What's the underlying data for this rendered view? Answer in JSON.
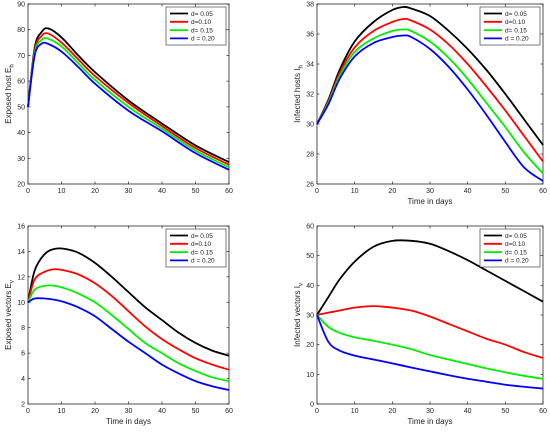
{
  "chart_data": [
    {
      "type": "line",
      "xlabel": "",
      "ylabel": "Exposed host E",
      "ylabel_sub": "h",
      "xlim": [
        0,
        60
      ],
      "ylim": [
        20,
        90
      ],
      "xticks": [
        0,
        10,
        20,
        30,
        40,
        50,
        60
      ],
      "yticks": [
        20,
        30,
        40,
        50,
        60,
        70,
        80,
        90
      ],
      "grid": false,
      "legend_position": "top-right",
      "x": [
        0,
        2,
        4,
        6,
        10,
        15,
        20,
        30,
        40,
        50,
        60
      ],
      "series": [
        {
          "name": "d= 0.05",
          "color": "#000000",
          "values": [
            50,
            73,
            79,
            80.5,
            77,
            70,
            63.5,
            52.5,
            43.5,
            35,
            28.5
          ]
        },
        {
          "name": "d=0.10",
          "color": "#ff0000",
          "values": [
            50,
            72,
            77.5,
            78.5,
            75,
            68.5,
            62,
            51.5,
            42.5,
            34,
            27.5
          ]
        },
        {
          "name": "d= 0.15",
          "color": "#00ee00",
          "values": [
            50,
            71,
            76,
            76.5,
            73.5,
            67,
            60.5,
            50,
            41.5,
            33,
            26.5
          ]
        },
        {
          "name": "d = 0.20",
          "color": "#0000ff",
          "values": [
            50,
            70,
            74.5,
            74.5,
            71.5,
            65.5,
            59,
            48.5,
            40.5,
            32,
            25.5
          ]
        }
      ]
    },
    {
      "type": "line",
      "xlabel": "Time in days",
      "ylabel": "Infected  hosts  I",
      "ylabel_sub": "h",
      "xlim": [
        0,
        60
      ],
      "ylim": [
        26,
        38
      ],
      "xticks": [
        0,
        10,
        20,
        30,
        40,
        50,
        60
      ],
      "yticks": [
        26,
        28,
        30,
        32,
        34,
        36,
        38
      ],
      "grid": false,
      "legend_position": "top-right",
      "x": [
        0,
        3,
        6,
        10,
        15,
        20,
        23,
        25,
        30,
        35,
        40,
        45,
        50,
        55,
        60
      ],
      "series": [
        {
          "name": "d= 0.05",
          "color": "#000000",
          "values": [
            30,
            31.6,
            33.6,
            35.5,
            36.8,
            37.6,
            37.8,
            37.7,
            37.2,
            36.2,
            35,
            33.6,
            32,
            30.3,
            28.6
          ]
        },
        {
          "name": "d=0.10",
          "color": "#ff0000",
          "values": [
            30,
            31.5,
            33.4,
            35.1,
            36.2,
            36.8,
            37,
            36.9,
            36.3,
            35.3,
            34,
            32.5,
            30.9,
            29.2,
            27.5
          ]
        },
        {
          "name": "d= 0.15",
          "color": "#00ee00",
          "values": [
            30,
            31.4,
            33.2,
            34.8,
            35.7,
            36.2,
            36.3,
            36.2,
            35.5,
            34.4,
            33,
            31.4,
            29.8,
            28.1,
            26.7
          ]
        },
        {
          "name": "d = 0.20",
          "color": "#0000ff",
          "values": [
            30,
            31.3,
            33,
            34.5,
            35.4,
            35.8,
            35.9,
            35.8,
            35,
            33.8,
            32.3,
            30.6,
            28.8,
            27.1,
            26.2
          ]
        }
      ]
    },
    {
      "type": "line",
      "xlabel": "Time in days",
      "ylabel": "Exposed vectors E",
      "ylabel_sub": "v",
      "xlim": [
        0,
        60
      ],
      "ylim": [
        2,
        16
      ],
      "xticks": [
        0,
        10,
        20,
        30,
        40,
        50,
        60
      ],
      "yticks": [
        2,
        4,
        6,
        8,
        10,
        12,
        14,
        16
      ],
      "grid": false,
      "legend_position": "top-right",
      "x": [
        0,
        2,
        5,
        8,
        11,
        15,
        20,
        25,
        30,
        35,
        40,
        45,
        50,
        55,
        60
      ],
      "series": [
        {
          "name": "d= 0.05",
          "color": "#000000",
          "values": [
            10,
            12.5,
            13.8,
            14.2,
            14.2,
            13.9,
            13.1,
            12,
            10.8,
            9.6,
            8.6,
            7.6,
            6.8,
            6.2,
            5.8
          ]
        },
        {
          "name": "d=0.10",
          "color": "#ff0000",
          "values": [
            10,
            11.8,
            12.4,
            12.6,
            12.5,
            12.2,
            11.5,
            10.5,
            9.3,
            8.1,
            7.1,
            6.3,
            5.6,
            5.1,
            4.7
          ]
        },
        {
          "name": "d= 0.15",
          "color": "#00ee00",
          "values": [
            10,
            11,
            11.3,
            11.3,
            11.1,
            10.7,
            10,
            9,
            7.9,
            6.8,
            6,
            5.2,
            4.6,
            4.1,
            3.8
          ]
        },
        {
          "name": "d = 0.20",
          "color": "#0000ff",
          "values": [
            10,
            10.3,
            10.3,
            10.2,
            10,
            9.6,
            8.9,
            7.9,
            6.9,
            6,
            5.1,
            4.4,
            3.8,
            3.4,
            3.1
          ]
        }
      ]
    },
    {
      "type": "line",
      "xlabel": "Time in days",
      "ylabel": "Infected vectors I",
      "ylabel_sub": "v",
      "xlim": [
        0,
        60
      ],
      "ylim": [
        0,
        60
      ],
      "xticks": [
        0,
        10,
        20,
        30,
        40,
        50,
        60
      ],
      "yticks": [
        0,
        10,
        20,
        30,
        40,
        50,
        60
      ],
      "grid": false,
      "legend_position": "top-right",
      "x": [
        0,
        3,
        6,
        10,
        15,
        20,
        25,
        30,
        35,
        40,
        45,
        50,
        55,
        60
      ],
      "series": [
        {
          "name": "d= 0.05",
          "color": "#000000",
          "values": [
            30,
            36,
            42,
            48,
            53,
            55,
            55,
            54,
            51.5,
            48.5,
            45,
            41.5,
            38,
            34.5
          ]
        },
        {
          "name": "d=0.10",
          "color": "#ff0000",
          "values": [
            30,
            30.8,
            31.5,
            32.5,
            33,
            32.5,
            31.5,
            29.5,
            27,
            24.5,
            22,
            20,
            17.5,
            15.5
          ]
        },
        {
          "name": "d= 0.15",
          "color": "#00ee00",
          "values": [
            30,
            26,
            24,
            22.5,
            21.3,
            20,
            18.5,
            16.5,
            15,
            13.5,
            12,
            10.7,
            9.5,
            8.5
          ]
        },
        {
          "name": "d = 0.20",
          "color": "#0000ff",
          "values": [
            30,
            21,
            18,
            16.3,
            15,
            13.7,
            12.3,
            11,
            9.7,
            8.5,
            7.5,
            6.5,
            5.8,
            5.2
          ]
        }
      ]
    }
  ]
}
